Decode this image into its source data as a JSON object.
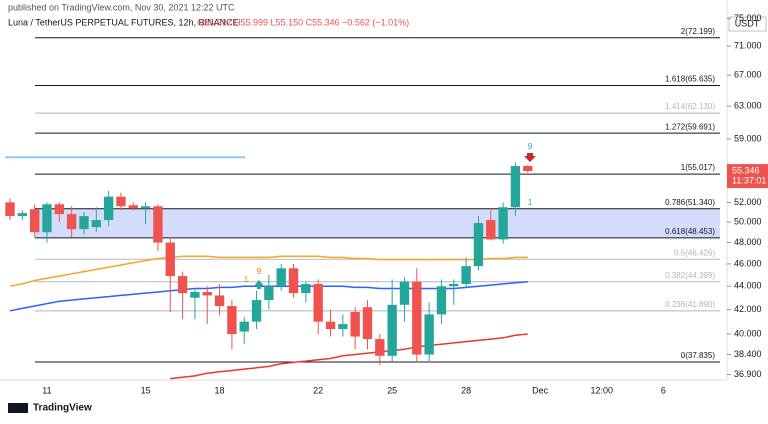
{
  "header": {
    "published": "published on TradingView.com, Nov 30, 2021 12:22 UTC",
    "symbol": "Luna / TetherUS PERPETUAL FUTURES, 12h, BINANCE",
    "ohlc": "O55.912 H55.999 L55.150 C55.346 −0.562 (−1.01%)",
    "currency": "USDT",
    "logo": "TradingView"
  },
  "chart_data": {
    "type": "candlestick",
    "log_scale": true,
    "up_color": "#26a69a",
    "down_color": "#ef5350",
    "categories": [
      null,
      null,
      null,
      "11",
      null,
      null,
      null,
      null,
      null,
      null,
      null,
      "15",
      null,
      null,
      null,
      null,
      null,
      "18",
      null,
      null,
      null,
      null,
      null,
      null,
      null,
      "22",
      null,
      null,
      null,
      null,
      null,
      "25",
      null,
      null,
      null,
      null,
      null,
      "28",
      null,
      null,
      null,
      null,
      null,
      "Dec",
      null,
      null,
      null,
      null,
      "12:00",
      null,
      null,
      null,
      null,
      "6",
      null,
      null,
      null,
      null
    ],
    "open": [
      52.0,
      50.6,
      51.3,
      49.0,
      51.8,
      50.8,
      49.3,
      49.5,
      50.2,
      52.6,
      51.7,
      51.4,
      51.6,
      48.0,
      44.9,
      43.0,
      43.5,
      43.2,
      42.3,
      40.2,
      41.0,
      42.8,
      44.0,
      45.6,
      43.4,
      44.2,
      41.0,
      40.4,
      41.8,
      42.2,
      39.6,
      38.3,
      42.4,
      44.4,
      38.4,
      41.6,
      44.0,
      44.2,
      45.8,
      50.2,
      48.3,
      51.5,
      55.912,
      null,
      null,
      null,
      null,
      null,
      null,
      null,
      null,
      null,
      null,
      null,
      null,
      null,
      null,
      null
    ],
    "high": [
      52.4,
      51.2,
      51.8,
      52.0,
      52.0,
      51.6,
      51.0,
      51.5,
      53.2,
      53.0,
      52.0,
      52.0,
      51.8,
      48.5,
      45.3,
      43.8,
      44.0,
      44.2,
      42.8,
      41.4,
      43.6,
      45.0,
      46.0,
      46.0,
      44.4,
      44.6,
      42.0,
      41.6,
      42.2,
      42.8,
      40.0,
      44.6,
      44.8,
      45.6,
      42.6,
      44.6,
      44.6,
      46.6,
      50.6,
      51.4,
      52.0,
      56.3,
      55.999,
      null,
      null,
      null,
      null,
      null,
      null,
      null,
      null,
      null,
      null,
      null,
      null,
      null,
      null,
      null
    ],
    "low": [
      50.2,
      50.2,
      48.5,
      48.0,
      50.0,
      48.5,
      48.8,
      49.0,
      49.6,
      51.2,
      51.2,
      49.8,
      47.2,
      41.8,
      41.2,
      41.2,
      40.8,
      41.5,
      38.8,
      39.2,
      40.4,
      42.0,
      43.6,
      43.0,
      42.6,
      40.0,
      39.8,
      39.8,
      38.8,
      38.8,
      37.6,
      37.9,
      41.0,
      37.8,
      37.8,
      40.8,
      42.4,
      43.8,
      45.4,
      48.2,
      47.9,
      50.6,
      55.15,
      null,
      null,
      null,
      null,
      null,
      null,
      null,
      null,
      null,
      null,
      null,
      null,
      null,
      null,
      null
    ],
    "close": [
      50.6,
      50.9,
      49.0,
      51.8,
      50.8,
      49.3,
      50.6,
      50.2,
      52.6,
      51.6,
      51.4,
      51.6,
      48.0,
      44.9,
      43.4,
      43.5,
      43.2,
      42.3,
      40.0,
      41.0,
      42.8,
      44.0,
      45.6,
      43.4,
      44.2,
      41.0,
      40.4,
      40.8,
      39.8,
      39.6,
      38.3,
      42.4,
      44.4,
      38.4,
      41.6,
      44.0,
      44.2,
      45.8,
      49.9,
      48.3,
      51.5,
      55.908,
      55.346,
      null,
      null,
      null,
      null,
      null,
      null,
      null,
      null,
      null,
      null,
      null,
      null,
      null,
      null,
      null
    ],
    "series": [
      {
        "color": "#f5a623",
        "values": [
          44.0,
          44.2,
          44.5,
          44.7,
          44.9,
          45.1,
          45.3,
          45.5,
          45.7,
          45.9,
          46.1,
          46.3,
          46.5,
          46.6,
          46.7,
          46.7,
          46.7,
          46.6,
          46.6,
          46.6,
          46.6,
          46.6,
          46.7,
          46.7,
          46.7,
          46.7,
          46.6,
          46.6,
          46.5,
          46.5,
          46.4,
          46.4,
          46.4,
          46.4,
          46.4,
          46.4,
          46.4,
          46.4,
          46.4,
          46.5,
          46.5,
          46.6,
          46.6,
          null,
          null,
          null,
          null,
          null,
          null,
          null,
          null,
          null,
          null,
          null,
          null,
          null,
          null,
          null
        ]
      },
      {
        "color": "#2962ff",
        "values": [
          41.9,
          42.1,
          42.3,
          42.5,
          42.7,
          42.8,
          42.9,
          43.0,
          43.1,
          43.2,
          43.3,
          43.4,
          43.5,
          43.6,
          43.7,
          43.8,
          43.8,
          43.9,
          43.9,
          44.0,
          44.0,
          44.0,
          44.0,
          44.0,
          44.0,
          44.0,
          44.0,
          44.0,
          43.9,
          43.9,
          43.8,
          43.8,
          43.8,
          43.8,
          43.8,
          43.8,
          43.8,
          43.9,
          44.0,
          44.1,
          44.2,
          44.3,
          44.4,
          null,
          null,
          null,
          null,
          null,
          null,
          null,
          null,
          null,
          null,
          null,
          null,
          null,
          null,
          null
        ]
      },
      {
        "color": "#e53935",
        "values": [
          null,
          null,
          null,
          null,
          null,
          null,
          null,
          null,
          null,
          null,
          null,
          null,
          null,
          36.6,
          36.7,
          36.8,
          37.0,
          37.1,
          37.2,
          37.3,
          37.4,
          37.5,
          37.7,
          37.8,
          37.9,
          38.0,
          38.1,
          38.3,
          38.4,
          38.5,
          38.6,
          38.7,
          38.8,
          39.0,
          39.1,
          39.2,
          39.3,
          39.4,
          39.5,
          39.6,
          39.7,
          39.9,
          40.0,
          null,
          null,
          null,
          null,
          null,
          null,
          null,
          null,
          null,
          null,
          null,
          null,
          null,
          null,
          null
        ]
      }
    ],
    "ylim": [
      36.5,
      76.6
    ],
    "yticks": [
      {
        "value": 36.9,
        "label": "36.900"
      },
      {
        "value": 38.4,
        "label": "38.400"
      },
      {
        "value": 40,
        "label": "40.000"
      },
      {
        "value": 42,
        "label": "42.000"
      },
      {
        "value": 44,
        "label": "44.000"
      },
      {
        "value": 46,
        "label": "46.000"
      },
      {
        "value": 48,
        "label": "48.000"
      },
      {
        "value": 50,
        "label": "50.000"
      },
      {
        "value": 52,
        "label": "52.000"
      },
      {
        "value": 59,
        "label": "59.000"
      },
      {
        "value": 63,
        "label": "63.000"
      },
      {
        "value": 67,
        "label": "67.000"
      },
      {
        "value": 71,
        "label": "71.000"
      },
      {
        "value": 75,
        "label": "75.000"
      }
    ],
    "fib_levels": [
      {
        "value": 72.199,
        "label": "2(72.199)",
        "color": "#131722"
      },
      {
        "value": 65.635,
        "label": "1.618(65.635)",
        "color": "#131722"
      },
      {
        "value": 62.13,
        "label": "1.414(62.130)",
        "color": "#b2b5be"
      },
      {
        "value": 59.691,
        "label": "1.272(59.691)",
        "color": "#131722"
      },
      {
        "value": 55.017,
        "label": "1(55.017)",
        "color": "#131722"
      },
      {
        "value": 51.34,
        "label": "0.786(51.340)",
        "color": "#131722"
      },
      {
        "value": 48.453,
        "label": "0.618(48.453)",
        "color": "#131722"
      },
      {
        "value": 46.426,
        "label": "0.5(46.426)",
        "color": "#b2b5be"
      },
      {
        "value": 44.399,
        "label": "0.382(44.399)",
        "color": "#b2b5be"
      },
      {
        "value": 41.89,
        "label": "0.236(41.890)",
        "color": "#b2b5be"
      },
      {
        "value": 37.835,
        "label": "0(37.835)",
        "color": "#131722"
      }
    ],
    "zone_color": "#c9d3fb",
    "level_line": {
      "value": 56.9,
      "color": "#90caf9"
    },
    "price_tag": {
      "value": 55.346,
      "label": "55.346",
      "countdown": "11:37:01",
      "color": "#ef5350"
    },
    "annotations": [
      "9",
      "1",
      "9",
      "1"
    ]
  }
}
